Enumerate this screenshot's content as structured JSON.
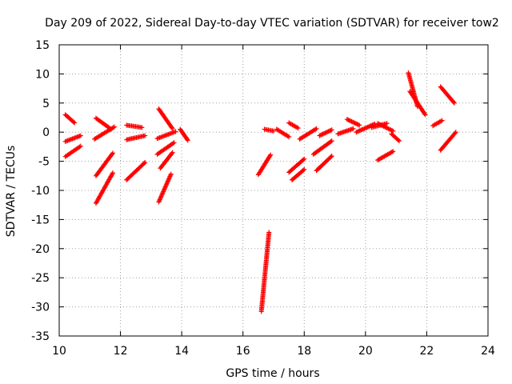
{
  "chart_data": {
    "type": "scatter",
    "title": "Day 209 of 2022, Sidereal Day-to-day VTEC variation (SDTVAR) for receiver tow2",
    "xlabel": "GPS time / hours",
    "ylabel": "SDTVAR / TECUs",
    "xlim": [
      10,
      24
    ],
    "ylim": [
      -35,
      15
    ],
    "xticks": [
      10,
      12,
      14,
      16,
      18,
      20,
      22,
      24
    ],
    "yticks": [
      15,
      10,
      5,
      0,
      -5,
      -10,
      -15,
      -20,
      -25,
      -30,
      -35
    ],
    "grid": true,
    "marker": "+",
    "color": "#ff0000",
    "arcs": [
      {
        "x": [
          10.2,
          10.5
        ],
        "y": [
          3.0,
          1.6
        ]
      },
      {
        "x": [
          10.2,
          10.7
        ],
        "y": [
          -1.6,
          -0.6
        ]
      },
      {
        "x": [
          10.2,
          10.7
        ],
        "y": [
          -4.2,
          -2.4
        ]
      },
      {
        "x": [
          11.2,
          11.7
        ],
        "y": [
          2.4,
          0.5
        ]
      },
      {
        "x": [
          11.15,
          11.8
        ],
        "y": [
          -1.2,
          0.9
        ]
      },
      {
        "x": [
          11.2,
          11.75
        ],
        "y": [
          -7.5,
          -3.6
        ]
      },
      {
        "x": [
          11.2,
          11.75
        ],
        "y": [
          -12.2,
          -7.0
        ]
      },
      {
        "x": [
          12.2,
          12.7
        ],
        "y": [
          1.2,
          0.8
        ]
      },
      {
        "x": [
          12.2,
          12.8
        ],
        "y": [
          -1.3,
          -0.6
        ]
      },
      {
        "x": [
          12.2,
          12.8
        ],
        "y": [
          -8.2,
          -5.2
        ]
      },
      {
        "x": [
          13.25,
          13.7
        ],
        "y": [
          4.0,
          0.6
        ]
      },
      {
        "x": [
          13.2,
          13.8
        ],
        "y": [
          -1.1,
          0.1
        ]
      },
      {
        "x": [
          13.2,
          13.75
        ],
        "y": [
          -3.8,
          -1.8
        ]
      },
      {
        "x": [
          13.3,
          13.7
        ],
        "y": [
          -6.2,
          -3.5
        ]
      },
      {
        "x": [
          13.25,
          13.65
        ],
        "y": [
          -12.0,
          -7.2
        ]
      },
      {
        "x": [
          13.95,
          14.2
        ],
        "y": [
          0.5,
          -1.4
        ]
      },
      {
        "x": [
          16.6,
          16.85
        ],
        "y": [
          -30.8,
          -17.2
        ]
      },
      {
        "x": [
          16.5,
          16.9
        ],
        "y": [
          -7.3,
          -3.9
        ]
      },
      {
        "x": [
          16.7,
          17.0
        ],
        "y": [
          0.5,
          0.2
        ]
      },
      {
        "x": [
          17.1,
          17.5
        ],
        "y": [
          0.5,
          -0.8
        ]
      },
      {
        "x": [
          17.5,
          17.8
        ],
        "y": [
          1.6,
          0.7
        ]
      },
      {
        "x": [
          17.5,
          18.0
        ],
        "y": [
          -6.9,
          -4.6
        ]
      },
      {
        "x": [
          17.6,
          18.0
        ],
        "y": [
          -8.2,
          -6.4
        ]
      },
      {
        "x": [
          17.85,
          18.4
        ],
        "y": [
          -1.2,
          0.6
        ]
      },
      {
        "x": [
          18.3,
          18.9
        ],
        "y": [
          -3.8,
          -1.5
        ]
      },
      {
        "x": [
          18.4,
          18.9
        ],
        "y": [
          -6.6,
          -4.1
        ]
      },
      {
        "x": [
          18.5,
          18.9
        ],
        "y": [
          -0.6,
          0.4
        ]
      },
      {
        "x": [
          19.1,
          19.6
        ],
        "y": [
          -0.3,
          0.6
        ]
      },
      {
        "x": [
          19.4,
          19.8
        ],
        "y": [
          2.2,
          1.2
        ]
      },
      {
        "x": [
          19.7,
          20.3
        ],
        "y": [
          0.0,
          1.4
        ]
      },
      {
        "x": [
          20.2,
          20.7
        ],
        "y": [
          0.8,
          1.5
        ]
      },
      {
        "x": [
          20.4,
          20.9
        ],
        "y": [
          1.5,
          0.2
        ]
      },
      {
        "x": [
          20.4,
          20.9
        ],
        "y": [
          -4.8,
          -3.3
        ]
      },
      {
        "x": [
          20.85,
          21.1
        ],
        "y": [
          -0.3,
          -1.5
        ]
      },
      {
        "x": [
          21.4,
          21.7
        ],
        "y": [
          10.2,
          4.4
        ]
      },
      {
        "x": [
          21.45,
          21.95
        ],
        "y": [
          7.0,
          3.0
        ]
      },
      {
        "x": [
          22.2,
          22.5
        ],
        "y": [
          1.1,
          2.0
        ]
      },
      {
        "x": [
          22.45,
          22.9
        ],
        "y": [
          7.8,
          5.0
        ]
      },
      {
        "x": [
          22.45,
          22.95
        ],
        "y": [
          -3.1,
          0.0
        ]
      }
    ]
  }
}
